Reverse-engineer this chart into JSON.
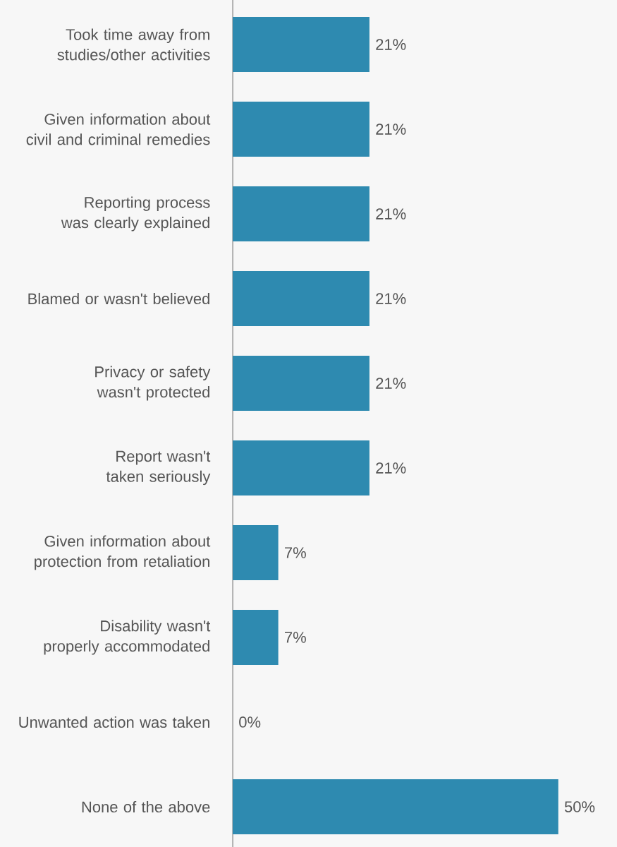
{
  "chart_data": {
    "type": "bar",
    "orientation": "horizontal",
    "categories": [
      "Took time away from studies/other activities",
      "Given information about civil and criminal remedies",
      "Reporting process was clearly explained",
      "Blamed or wasn't believed",
      "Privacy or safety wasn't protected",
      "Report wasn't taken seriously",
      "Given information about protection from retaliation",
      "Disability wasn't properly accommodated",
      "Unwanted action was taken",
      "None of the above"
    ],
    "values": [
      21,
      21,
      21,
      21,
      21,
      21,
      7,
      7,
      0,
      50
    ],
    "value_labels": [
      "21%",
      "21%",
      "21%",
      "21%",
      "21%",
      "21%",
      "7%",
      "7%",
      "0%",
      "50%"
    ],
    "color": "#2e8ab0"
  }
}
